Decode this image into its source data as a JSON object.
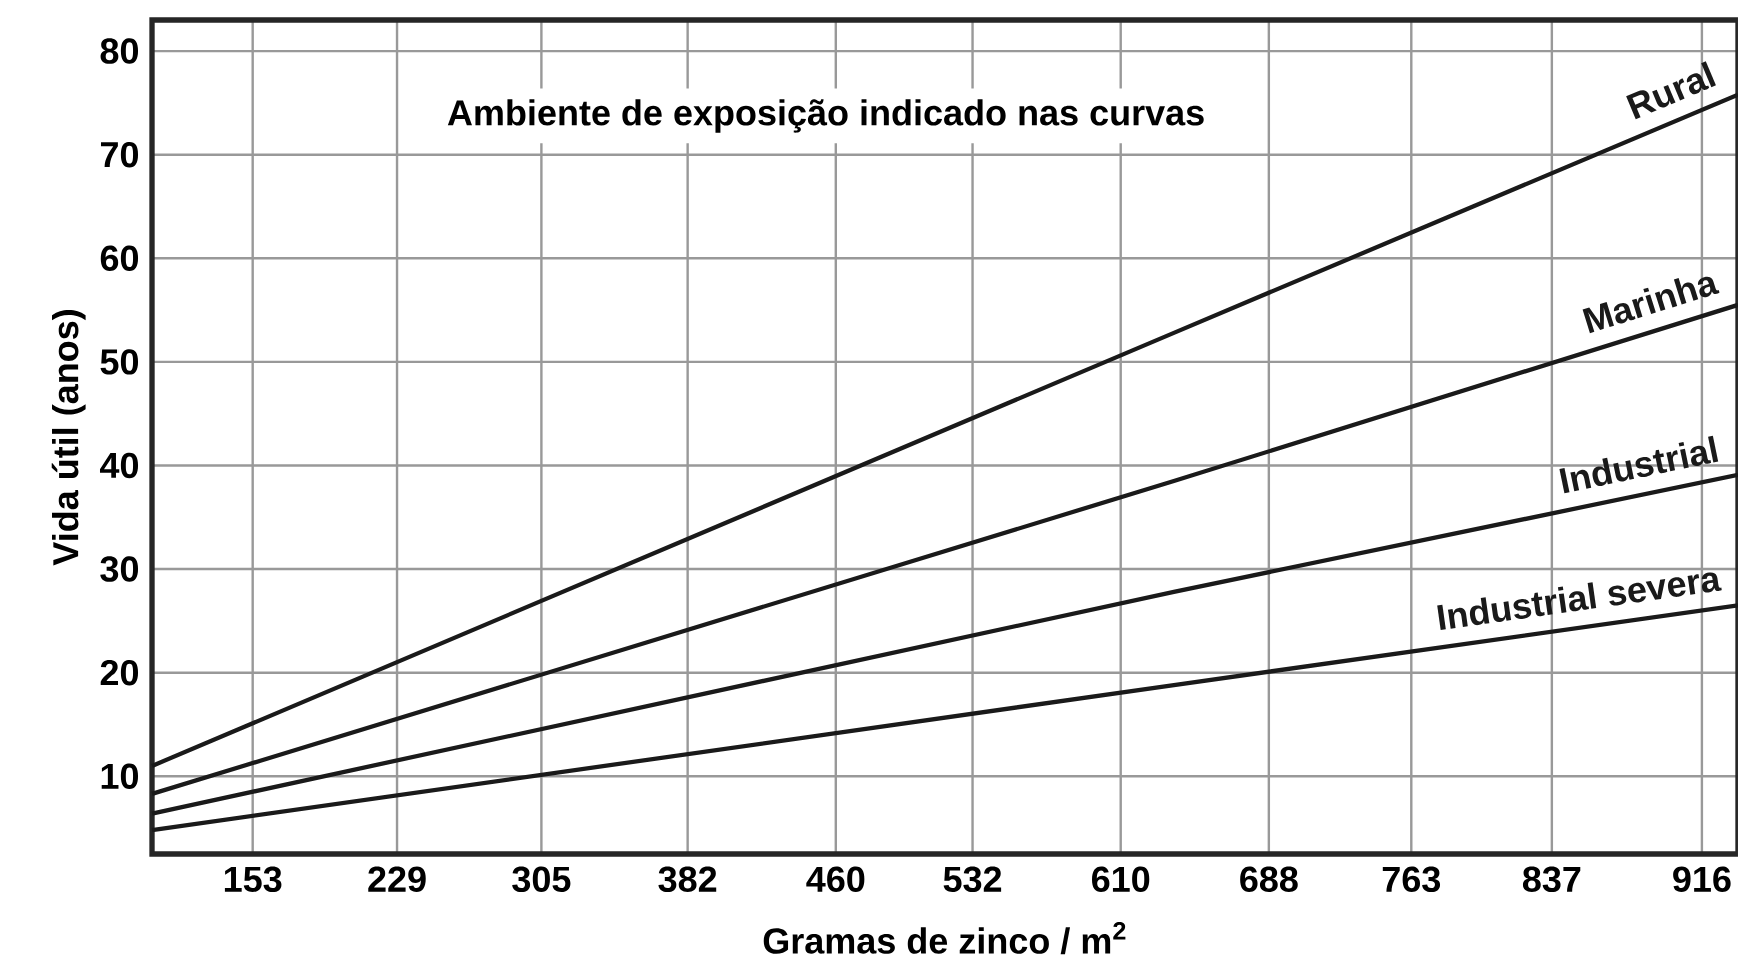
{
  "chart_data": {
    "type": "line",
    "title": "Ambiente de exposição indicado nas curvas",
    "xlabel": "Gramas de zinco / m$^{2}$",
    "ylabel": "Vida útil (anos)",
    "xlim": [
      100,
      935
    ],
    "ylim": [
      2.5,
      83
    ],
    "xticks": [
      153,
      229,
      305,
      382,
      460,
      532,
      610,
      688,
      763,
      837,
      916
    ],
    "yticks": [
      10,
      20,
      30,
      40,
      50,
      60,
      70,
      80
    ],
    "grid": true,
    "legend": false,
    "marker": "none",
    "line_style": "solid",
    "series": [
      {
        "name": "Rural",
        "color": "#1a1a1a",
        "x": [
          100,
          638,
          935
        ],
        "values": [
          11.0,
          52.8,
          75.8
        ]
      },
      {
        "name": "Marinha",
        "color": "#1a1a1a",
        "x": [
          100,
          638,
          935
        ],
        "values": [
          8.3,
          38.5,
          55.5
        ]
      },
      {
        "name": "Industrial",
        "color": "#1a1a1a",
        "x": [
          100,
          638,
          935
        ],
        "values": [
          6.4,
          27.8,
          39.1
        ]
      },
      {
        "name": "Industrial severa",
        "color": "#1a1a1a",
        "x": [
          100,
          638,
          935
        ],
        "values": [
          4.8,
          18.8,
          26.5
        ]
      }
    ]
  }
}
